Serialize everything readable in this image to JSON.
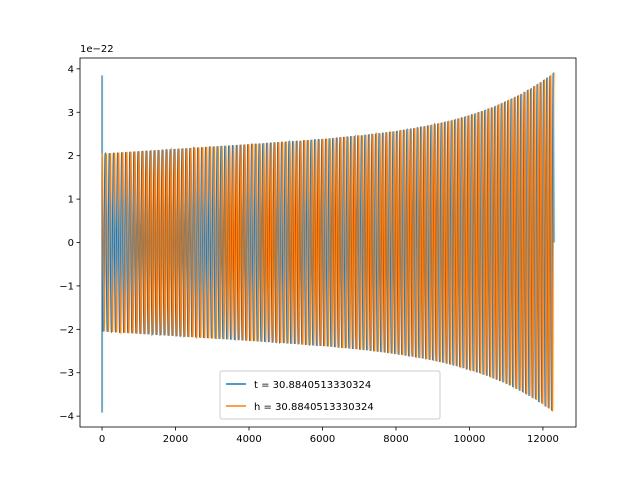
{
  "chart_data": {
    "type": "line",
    "title": "",
    "xlabel": "",
    "ylabel": "",
    "offset_label": "1e−22",
    "xlim": [
      -600,
      12900
    ],
    "ylim": [
      -4.25,
      4.25
    ],
    "xticks": [
      0,
      2000,
      4000,
      6000,
      8000,
      10000,
      12000
    ],
    "xtick_labels": [
      "0",
      "2000",
      "4000",
      "6000",
      "8000",
      "10000",
      "12000"
    ],
    "yticks": [
      -4,
      -3,
      -2,
      -1,
      0,
      1,
      2,
      3,
      4
    ],
    "ytick_labels": [
      "−4",
      "−3",
      "−2",
      "−1",
      "0",
      "1",
      "2",
      "3",
      "4"
    ],
    "grid": false,
    "legend_position": "lower center",
    "envelope": {
      "x_end": 12300,
      "amplitude_start": 2.05,
      "amplitude_mid": 2.45,
      "amplitude_end": 3.92,
      "cycles": 125
    },
    "series": [
      {
        "name": "t = 30.8840513330324",
        "color": "#1f77b4",
        "initial_spike": [
          3.85,
          -3.92
        ]
      },
      {
        "name": "h = 30.8840513330324",
        "color": "#ff7f0e"
      }
    ]
  }
}
